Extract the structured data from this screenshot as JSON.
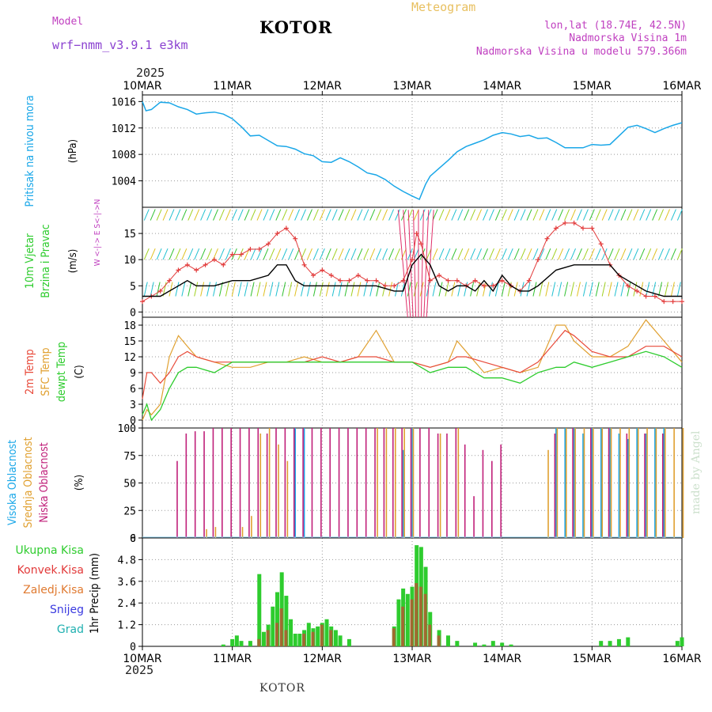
{
  "header": {
    "model_label": "Model",
    "model_name": "wrf−nmm_v3.9.1  e3km",
    "title": "KOTOR",
    "meteogram": "Meteogram",
    "lonlat": "lon,lat (18.74E, 42.5N)",
    "elevation": "Nadmorska Visina 1m",
    "model_elevation": "Nadmorska Visina u modelu 579.366m",
    "year_top": "2025",
    "year_bottom": "2025",
    "footer_location": "KOTOR",
    "watermark": "made by Angel"
  },
  "colors": {
    "pressure": "#1aa7e8",
    "wind_speed": "#000000",
    "wind_gust": "#e23a3a",
    "temp_2m": "#e84a3a",
    "temp_sfc": "#e0a030",
    "dewpoint": "#2ecc2e",
    "cloud_high": "#1aa7e8",
    "cloud_mid": "#e0a030",
    "cloud_low": "#c0207a",
    "precip_total": "#2ecc2e",
    "precip_conv": "#e23a3a",
    "precip_frozen": "#e07a30",
    "snow": "#3a3ae0",
    "hail": "#20b0b0",
    "axis_label_purple": "#c040c0"
  },
  "chart_data": [
    {
      "id": "pressure",
      "type": "line",
      "label_lines": [
        "Pritisak na nivou mora"
      ],
      "unit": "(hPa)",
      "ylim": [
        1000,
        1017
      ],
      "yticks": [
        1004,
        1008,
        1012,
        1016
      ],
      "x_days": [
        "10MAR",
        "11MAR",
        "12MAR",
        "13MAR",
        "14MAR",
        "15MAR",
        "16MAR"
      ],
      "series": [
        {
          "name": "Pritisak",
          "x": [
            0,
            0.04,
            0.1,
            0.2,
            0.3,
            0.4,
            0.5,
            0.6,
            0.7,
            0.8,
            0.9,
            1.0,
            1.1,
            1.2,
            1.3,
            1.4,
            1.5,
            1.6,
            1.7,
            1.8,
            1.9,
            2.0,
            2.1,
            2.2,
            2.3,
            2.4,
            2.5,
            2.6,
            2.7,
            2.8,
            2.9,
            3.0,
            3.08,
            3.15,
            3.2,
            3.3,
            3.4,
            3.5,
            3.6,
            3.7,
            3.8,
            3.9,
            4.0,
            4.1,
            4.2,
            4.3,
            4.4,
            4.5,
            4.6,
            4.7,
            4.8,
            4.9,
            5.0,
            5.1,
            5.2,
            5.3,
            5.4,
            5.5,
            5.6,
            5.7,
            5.8,
            5.9,
            6.0
          ],
          "values": [
            1016,
            1014.6,
            1014.8,
            1015.9,
            1015.8,
            1015.2,
            1014.8,
            1014.1,
            1014.3,
            1014.4,
            1014.1,
            1013.4,
            1012.2,
            1010.8,
            1010.9,
            1010.1,
            1009.3,
            1009.2,
            1008.8,
            1008.1,
            1007.8,
            1006.9,
            1006.8,
            1007.5,
            1006.9,
            1006.1,
            1005.2,
            1004.9,
            1004.2,
            1003.2,
            1002.4,
            1001.7,
            1001.2,
            1003.5,
            1004.7,
            1005.9,
            1007.1,
            1008.4,
            1009.2,
            1009.7,
            1010.2,
            1010.9,
            1011.3,
            1011.1,
            1010.7,
            1010.9,
            1010.4,
            1010.5,
            1009.8,
            1009.0,
            1009.0,
            1009.0,
            1009.5,
            1009.4,
            1009.5,
            1010.8,
            1012.1,
            1012.4,
            1011.9,
            1011.3,
            1011.9,
            1012.4,
            1012.8
          ]
        }
      ]
    },
    {
      "id": "wind",
      "type": "line",
      "label_lines": [
        "10m Vjetar",
        "Brzina i Pravac"
      ],
      "unit": "(m/s)",
      "direction_key": "W <-|-> E  S<-|->N",
      "ylim": [
        -1,
        20
      ],
      "yticks": [
        0,
        5,
        10,
        15
      ],
      "series": [
        {
          "name": "Brzina",
          "x": [
            0,
            0.2,
            0.4,
            0.5,
            0.6,
            0.8,
            1.0,
            1.2,
            1.4,
            1.5,
            1.6,
            1.7,
            1.8,
            1.9,
            2.0,
            2.2,
            2.4,
            2.6,
            2.8,
            2.9,
            3.0,
            3.1,
            3.2,
            3.3,
            3.4,
            3.5,
            3.6,
            3.7,
            3.8,
            3.9,
            4.0,
            4.1,
            4.2,
            4.3,
            4.4,
            4.6,
            4.8,
            5.0,
            5.2,
            5.3,
            5.4,
            5.6,
            5.8,
            6.0
          ],
          "values": [
            3,
            3,
            5,
            6,
            5,
            5,
            6,
            6,
            7,
            9,
            9,
            6,
            5,
            5,
            5,
            5,
            5,
            5,
            4,
            4,
            9,
            11,
            9,
            5,
            4,
            5,
            5,
            4,
            6,
            4,
            7,
            5,
            4,
            4,
            5,
            8,
            9,
            9,
            9,
            7,
            6,
            4,
            3,
            3
          ]
        },
        {
          "name": "Udar",
          "x": [
            0,
            0.1,
            0.2,
            0.3,
            0.4,
            0.5,
            0.6,
            0.7,
            0.8,
            0.9,
            1.0,
            1.1,
            1.2,
            1.3,
            1.4,
            1.5,
            1.6,
            1.7,
            1.8,
            1.9,
            2.0,
            2.1,
            2.2,
            2.3,
            2.4,
            2.5,
            2.6,
            2.7,
            2.8,
            2.9,
            3.0,
            3.05,
            3.1,
            3.2,
            3.3,
            3.4,
            3.5,
            3.6,
            3.7,
            3.8,
            3.9,
            4.0,
            4.1,
            4.2,
            4.3,
            4.4,
            4.5,
            4.6,
            4.7,
            4.8,
            4.9,
            5.0,
            5.1,
            5.2,
            5.3,
            5.4,
            5.5,
            5.6,
            5.7,
            5.8,
            5.9,
            6.0
          ],
          "values": [
            2,
            3,
            4,
            6,
            8,
            9,
            8,
            9,
            10,
            9,
            11,
            11,
            12,
            12,
            13,
            15,
            16,
            14,
            9,
            7,
            8,
            7,
            6,
            6,
            7,
            6,
            6,
            5,
            5,
            6,
            10,
            15,
            13,
            6,
            7,
            6,
            6,
            5,
            6,
            5,
            5,
            6,
            5,
            4,
            6,
            10,
            14,
            16,
            17,
            17,
            16,
            16,
            13,
            9,
            7,
            5,
            4,
            3,
            3,
            2,
            2,
            2
          ]
        }
      ]
    },
    {
      "id": "temperature",
      "type": "line",
      "label_lines": [
        "2m Temp",
        "SFC Temp",
        "dewpt Temp"
      ],
      "unit": "(C)",
      "ylim": [
        -1.5,
        19.5
      ],
      "yticks": [
        0,
        3,
        6,
        9,
        12,
        15,
        18
      ],
      "series": [
        {
          "name": "2m Temp",
          "x": [
            0,
            0.05,
            0.1,
            0.2,
            0.3,
            0.4,
            0.5,
            0.6,
            0.8,
            1.0,
            1.2,
            1.4,
            1.6,
            1.8,
            2.0,
            2.2,
            2.4,
            2.6,
            2.8,
            3.0,
            3.2,
            3.4,
            3.5,
            3.6,
            3.8,
            4.0,
            4.2,
            4.4,
            4.6,
            4.7,
            4.8,
            5.0,
            5.2,
            5.4,
            5.6,
            5.8,
            6.0
          ],
          "values": [
            4,
            9,
            9,
            7,
            9,
            12,
            13,
            12,
            11,
            11,
            11,
            11,
            11,
            11,
            12,
            11,
            12,
            12,
            11,
            11,
            10,
            11,
            12,
            12,
            11,
            10,
            9,
            11,
            15,
            17,
            16,
            13,
            12,
            12,
            14,
            14,
            12
          ]
        },
        {
          "name": "SFC Temp",
          "x": [
            0,
            0.05,
            0.1,
            0.2,
            0.3,
            0.4,
            0.5,
            0.6,
            0.8,
            1.0,
            1.2,
            1.4,
            1.6,
            1.8,
            2.0,
            2.2,
            2.4,
            2.6,
            2.8,
            3.0,
            3.2,
            3.4,
            3.5,
            3.6,
            3.8,
            4.0,
            4.2,
            4.4,
            4.6,
            4.7,
            4.8,
            5.0,
            5.2,
            5.4,
            5.6,
            5.8,
            6.0
          ],
          "values": [
            0,
            2,
            1,
            3,
            12,
            16,
            14,
            12,
            11,
            10,
            10,
            11,
            11,
            12,
            11,
            11,
            12,
            17,
            11,
            11,
            10,
            11,
            15,
            13,
            9,
            10,
            9,
            10,
            18,
            18,
            15,
            12,
            12,
            14,
            19,
            15,
            11
          ]
        },
        {
          "name": "dewpt Temp",
          "x": [
            0,
            0.05,
            0.1,
            0.2,
            0.3,
            0.4,
            0.5,
            0.6,
            0.8,
            1.0,
            1.2,
            1.4,
            1.6,
            1.8,
            2.0,
            2.2,
            2.4,
            2.6,
            2.8,
            3.0,
            3.2,
            3.4,
            3.5,
            3.6,
            3.8,
            4.0,
            4.2,
            4.4,
            4.6,
            4.7,
            4.8,
            5.0,
            5.2,
            5.4,
            5.6,
            5.8,
            6.0
          ],
          "values": [
            1,
            3,
            0,
            2,
            6,
            9,
            10,
            10,
            9,
            11,
            11,
            11,
            11,
            11,
            11,
            11,
            11,
            11,
            11,
            11,
            9,
            10,
            10,
            10,
            8,
            8,
            7,
            9,
            10,
            10,
            11,
            10,
            11,
            12,
            13,
            12,
            10
          ]
        }
      ]
    },
    {
      "id": "clouds",
      "type": "bar",
      "label_lines": [
        "Visoka Oblacnost",
        "Srednja Oblacnost",
        "Niska Oblacnost"
      ],
      "unit": "(%)",
      "ylim": [
        0,
        100
      ],
      "yticks": [
        0,
        25,
        50,
        75,
        100
      ],
      "series": [
        {
          "name": "Niska",
          "x": [
            0.4,
            0.5,
            0.6,
            0.7,
            0.8,
            0.9,
            1.0,
            1.1,
            1.2,
            1.3,
            1.4,
            1.5,
            1.6,
            1.7,
            1.8,
            1.9,
            2.0,
            2.1,
            2.2,
            2.3,
            2.4,
            2.5,
            2.6,
            2.7,
            2.8,
            2.9,
            3.0,
            3.1,
            3.2,
            3.3,
            3.4,
            3.5,
            3.6,
            3.7,
            3.8,
            3.9,
            4.0,
            4.6,
            4.8,
            5.0,
            5.2,
            5.4,
            5.6,
            5.8
          ],
          "values": [
            70,
            95,
            97,
            97,
            100,
            100,
            100,
            100,
            100,
            100,
            95,
            100,
            100,
            100,
            100,
            100,
            100,
            100,
            100,
            100,
            100,
            100,
            100,
            100,
            100,
            100,
            100,
            100,
            100,
            95,
            95,
            100,
            85,
            38,
            80,
            70,
            85,
            95,
            100,
            100,
            100,
            95,
            95,
            95
          ]
        },
        {
          "name": "Srednja",
          "x": [
            0.7,
            0.8,
            1.1,
            1.2,
            1.3,
            1.4,
            1.5,
            1.6,
            2.6,
            2.7,
            2.8,
            2.9,
            3.0,
            3.3,
            3.5,
            4.5,
            4.6,
            4.7,
            4.8,
            4.9,
            5.0,
            5.1,
            5.2,
            5.3,
            5.4,
            5.5,
            5.6,
            5.7,
            5.8,
            5.9,
            6.0
          ],
          "values": [
            8,
            10,
            10,
            20,
            95,
            100,
            85,
            70,
            100,
            100,
            100,
            100,
            100,
            95,
            100,
            80,
            100,
            100,
            100,
            100,
            100,
            100,
            100,
            100,
            100,
            100,
            100,
            100,
            100,
            100,
            100
          ]
        },
        {
          "name": "Visoka",
          "x": [
            1.7,
            1.8,
            2.9,
            3.0,
            4.6,
            4.7,
            4.8,
            4.9,
            5.0,
            5.1,
            5.2,
            5.3,
            5.4,
            5.5,
            5.6,
            5.7,
            5.8
          ],
          "values": [
            100,
            100,
            80,
            100,
            100,
            100,
            100,
            95,
            100,
            100,
            100,
            95,
            90,
            100,
            95,
            100,
            100
          ]
        }
      ]
    },
    {
      "id": "precip",
      "type": "bar",
      "label_lines": [
        "Ukupna Kisa",
        "Konvek.Kisa",
        "Zaledj.Kisa",
        "Snijeg",
        "Grad"
      ],
      "unit": "1hr Precip (mm)",
      "ylim": [
        0,
        6
      ],
      "yticks": [
        0,
        1.2,
        2.4,
        3.6,
        4.8,
        6
      ],
      "series": [
        {
          "name": "Ukupna",
          "x": [
            0.9,
            1.0,
            1.05,
            1.1,
            1.2,
            1.3,
            1.35,
            1.4,
            1.45,
            1.5,
            1.55,
            1.6,
            1.65,
            1.7,
            1.75,
            1.8,
            1.85,
            1.9,
            1.95,
            2.0,
            2.05,
            2.1,
            2.15,
            2.2,
            2.3,
            2.8,
            2.85,
            2.9,
            2.95,
            3.0,
            3.05,
            3.1,
            3.15,
            3.2,
            3.3,
            3.4,
            3.5,
            3.7,
            3.8,
            3.9,
            4.0,
            4.1,
            5.1,
            5.2,
            5.3,
            5.4,
            5.95,
            6.0
          ],
          "values": [
            0.1,
            0.4,
            0.6,
            0.3,
            0.3,
            4.0,
            0.8,
            1.2,
            2.2,
            3.0,
            4.1,
            2.8,
            1.5,
            0.7,
            0.7,
            0.9,
            1.3,
            1.0,
            1.1,
            1.3,
            1.5,
            1.1,
            0.9,
            0.6,
            0.4,
            1.1,
            2.6,
            3.2,
            2.9,
            3.3,
            5.6,
            5.5,
            4.4,
            1.9,
            0.9,
            0.6,
            0.3,
            0.2,
            0.1,
            0.3,
            0.2,
            0.1,
            0.3,
            0.3,
            0.4,
            0.5,
            0.3,
            0.5
          ]
        },
        {
          "name": "Konvek",
          "x": [
            1.3,
            1.4,
            1.5,
            1.55,
            1.6,
            1.8,
            1.9,
            2.0,
            2.1,
            2.8,
            2.9,
            3.0,
            3.05,
            3.1,
            3.15,
            3.2,
            3.3
          ],
          "values": [
            0.4,
            0.9,
            1.3,
            2.1,
            0.9,
            0.7,
            0.8,
            1.2,
            0.9,
            1.0,
            2.2,
            2.6,
            3.5,
            3.3,
            2.9,
            1.2,
            0.6
          ]
        }
      ]
    }
  ]
}
